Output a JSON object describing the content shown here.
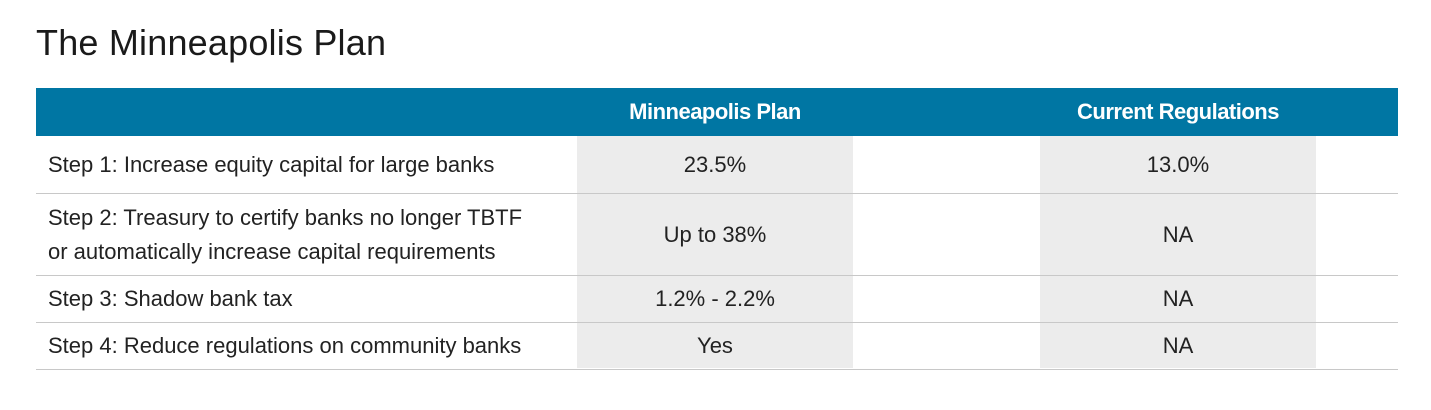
{
  "title": "The Minneapolis Plan",
  "header": {
    "col0": "",
    "col1": "Minneapolis Plan",
    "col2": "Current Regulations"
  },
  "rows": [
    {
      "label_line1": "Step 1: Increase equity capital for large banks",
      "label_line2": "",
      "minneapolis": "23.5%",
      "current": "13.0%"
    },
    {
      "label_line1": "Step 2: Treasury to certify banks no longer TBTF",
      "label_line2": "or automatically increase capital requirements",
      "minneapolis": "Up to 38%",
      "current": "NA"
    },
    {
      "label_line1": "Step 3: Shadow bank tax",
      "label_line2": "",
      "minneapolis": "1.2% - 2.2%",
      "current": "NA"
    },
    {
      "label_line1": "Step 4: Reduce regulations on community banks",
      "label_line2": "",
      "minneapolis": "Yes",
      "current": "NA"
    }
  ],
  "colors": {
    "header_bg": "#0076a3",
    "header_text": "#ffffff",
    "shade": "#ececec",
    "divider": "#c8c8c8"
  }
}
